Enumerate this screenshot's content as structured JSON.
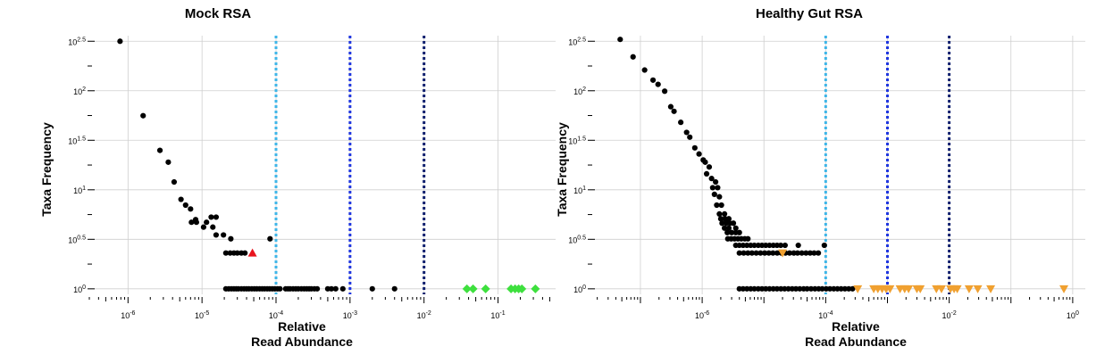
{
  "chart_data": [
    {
      "type": "scatter",
      "title": "Mock RSA",
      "xlabel": [
        "Relative",
        "Read Abundance"
      ],
      "ylabel": "Taxa Frequency",
      "x_scale": "log",
      "y_scale": "log",
      "xlim": [
        3e-07,
        0.6
      ],
      "ylim": [
        0.88,
        360
      ],
      "grid": true,
      "legend": "none",
      "x_ticks": [
        {
          "value": 1e-06,
          "base": "10",
          "exp": "-6"
        },
        {
          "value": 1e-05,
          "base": "10",
          "exp": "-5"
        },
        {
          "value": 0.0001,
          "base": "10",
          "exp": "-4"
        },
        {
          "value": 0.001,
          "base": "10",
          "exp": "-3"
        },
        {
          "value": 0.01,
          "base": "10",
          "exp": "-2"
        },
        {
          "value": 0.1,
          "base": "10",
          "exp": "-1"
        }
      ],
      "y_ticks": [
        {
          "value": 1,
          "base": "10",
          "exp": "0"
        },
        {
          "value": 3.1623,
          "base": "10",
          "exp": "0.5"
        },
        {
          "value": 10,
          "base": "10",
          "exp": "1"
        },
        {
          "value": 31.623,
          "base": "10",
          "exp": "1.5"
        },
        {
          "value": 100,
          "base": "10",
          "exp": "2"
        },
        {
          "value": 316.23,
          "base": "10",
          "exp": "2.5"
        }
      ],
      "threshold_lines": [
        {
          "x": 0.0001,
          "color": "#3fb6e8"
        },
        {
          "x": 0.001,
          "color": "#1f36e0"
        },
        {
          "x": 0.01,
          "color": "#0e1f6e"
        }
      ],
      "series": [
        {
          "color": "#000000",
          "marker": "circle",
          "points": [
            [
              7.8e-07,
              316
            ],
            [
              1.6e-06,
              56
            ],
            [
              2.7e-06,
              25
            ],
            [
              3.5e-06,
              19
            ],
            [
              4.2e-06,
              12
            ],
            [
              5.2e-06,
              8
            ],
            [
              6e-06,
              7
            ],
            [
              7e-06,
              6.4
            ],
            [
              8.2e-06,
              5
            ],
            [
              7.2e-06,
              4.7
            ],
            [
              8.4e-06,
              4.7
            ],
            [
              1.15e-05,
              4.7
            ],
            [
              1.33e-05,
              5.3
            ],
            [
              1.55e-05,
              5.3
            ],
            [
              1.05e-05,
              4.2
            ],
            [
              1.4e-05,
              4.2
            ],
            [
              1.55e-05,
              3.5
            ],
            [
              1.95e-05,
              3.5
            ],
            [
              2.45e-05,
              3.2
            ],
            [
              2.1e-05,
              2.3
            ],
            [
              2.4e-05,
              2.3
            ],
            [
              2.7e-05,
              2.3
            ],
            [
              3e-05,
              2.3
            ],
            [
              3.4e-05,
              2.3
            ],
            [
              3.8e-05,
              2.3
            ],
            [
              8.3e-05,
              3.2
            ],
            [
              2.1e-05,
              1
            ],
            [
              2.3e-05,
              1
            ],
            [
              2.5e-05,
              1
            ],
            [
              2.7e-05,
              1
            ],
            [
              2.9e-05,
              1
            ],
            [
              3.1e-05,
              1
            ],
            [
              3.4e-05,
              1
            ],
            [
              3.7e-05,
              1
            ],
            [
              4e-05,
              1
            ],
            [
              4.3e-05,
              1
            ],
            [
              4.7e-05,
              1
            ],
            [
              5.1e-05,
              1
            ],
            [
              5.5e-05,
              1
            ],
            [
              6e-05,
              1
            ],
            [
              6.5e-05,
              1
            ],
            [
              7e-05,
              1
            ],
            [
              7.6e-05,
              1
            ],
            [
              8.2e-05,
              1
            ],
            [
              8.9e-05,
              1
            ],
            [
              9.6e-05,
              1
            ],
            [
              0.000105,
              1
            ],
            [
              0.000113,
              1
            ],
            [
              0.000135,
              1
            ],
            [
              0.000145,
              1
            ],
            [
              0.000155,
              1
            ],
            [
              0.00017,
              1
            ],
            [
              0.000185,
              1
            ],
            [
              0.0002,
              1
            ],
            [
              0.00022,
              1
            ],
            [
              0.00024,
              1
            ],
            [
              0.00026,
              1
            ],
            [
              0.00028,
              1
            ],
            [
              0.0003,
              1
            ],
            [
              0.00033,
              1
            ],
            [
              0.00036,
              1
            ],
            [
              0.0005,
              1
            ],
            [
              0.00056,
              1
            ],
            [
              0.00064,
              1
            ],
            [
              0.0008,
              1
            ],
            [
              0.002,
              1
            ],
            [
              0.004,
              1
            ]
          ]
        },
        {
          "color": "#e8141e",
          "marker": "triangle-up",
          "points": [
            [
              4.8e-05,
              2.3
            ]
          ]
        },
        {
          "color": "#3ee03e",
          "marker": "diamond",
          "points": [
            [
              0.038,
              1
            ],
            [
              0.046,
              1
            ],
            [
              0.068,
              1
            ],
            [
              0.15,
              1
            ],
            [
              0.17,
              1
            ],
            [
              0.19,
              1
            ],
            [
              0.21,
              1
            ],
            [
              0.32,
              1
            ]
          ]
        }
      ]
    },
    {
      "type": "scatter",
      "title": "Healthy Gut RSA",
      "xlabel": [
        "Relative",
        "Read Abundance"
      ],
      "ylabel": "Taxa Frequency",
      "x_scale": "log",
      "y_scale": "log",
      "xlim": [
        1.5e-08,
        1.6
      ],
      "ylim": [
        0.88,
        360
      ],
      "grid": true,
      "legend": "none",
      "x_ticks": [
        {
          "value": 1e-06,
          "base": "10",
          "exp": "-6"
        },
        {
          "value": 0.0001,
          "base": "10",
          "exp": "-4"
        },
        {
          "value": 0.01,
          "base": "10",
          "exp": "-2"
        },
        {
          "value": 1,
          "base": "10",
          "exp": "0"
        }
      ],
      "y_ticks": [
        {
          "value": 1,
          "base": "10",
          "exp": "0"
        },
        {
          "value": 3.1623,
          "base": "10",
          "exp": "0.5"
        },
        {
          "value": 10,
          "base": "10",
          "exp": "1"
        },
        {
          "value": 31.623,
          "base": "10",
          "exp": "1.5"
        },
        {
          "value": 100,
          "base": "10",
          "exp": "2"
        },
        {
          "value": 316.23,
          "base": "10",
          "exp": "2.5"
        }
      ],
      "threshold_lines": [
        {
          "x": 0.0001,
          "color": "#3fb6e8"
        },
        {
          "x": 0.001,
          "color": "#1f36e0"
        },
        {
          "x": 0.01,
          "color": "#0e1f6e"
        }
      ],
      "series": [
        {
          "color": "#000000",
          "marker": "circle",
          "points": [
            [
              4.7e-08,
              330
            ],
            [
              7.6e-08,
              220
            ],
            [
              1.17e-07,
              162
            ],
            [
              1.6e-07,
              128
            ],
            [
              1.93e-07,
              116
            ],
            [
              2.47e-07,
              99
            ],
            [
              3.1e-07,
              69
            ],
            [
              3.5e-07,
              62
            ],
            [
              4.5e-07,
              48
            ],
            [
              5.6e-07,
              38
            ],
            [
              6.3e-07,
              34
            ],
            [
              7.6e-07,
              26.5
            ],
            [
              8.9e-07,
              23
            ],
            [
              1.04e-06,
              20
            ],
            [
              1.12e-06,
              19
            ],
            [
              1.3e-06,
              17
            ],
            [
              1.18e-06,
              14.5
            ],
            [
              1.42e-06,
              13
            ],
            [
              1.65e-06,
              12
            ],
            [
              1.48e-06,
              10.5
            ],
            [
              1.78e-06,
              10.5
            ],
            [
              1.58e-06,
              9
            ],
            [
              1.9e-06,
              8.5
            ],
            [
              1.72e-06,
              7
            ],
            [
              2.05e-06,
              7
            ],
            [
              1.9e-06,
              5.7
            ],
            [
              2.3e-06,
              5.7
            ],
            [
              2e-06,
              5.1
            ],
            [
              2.35e-06,
              5.1
            ],
            [
              2.7e-06,
              5.1
            ],
            [
              2.1e-06,
              4.6
            ],
            [
              2.45e-06,
              4.6
            ],
            [
              2.8e-06,
              4.6
            ],
            [
              3.2e-06,
              4.6
            ],
            [
              3.5e-06,
              4.1
            ],
            [
              2.3e-06,
              4.1
            ],
            [
              2.7e-06,
              4.1
            ],
            [
              2.55e-06,
              3.7
            ],
            [
              3e-06,
              3.7
            ],
            [
              3.5e-06,
              3.7
            ],
            [
              4e-06,
              3.7
            ],
            [
              2.6e-06,
              3.2
            ],
            [
              2.95e-06,
              3.2
            ],
            [
              3.35e-06,
              3.2
            ],
            [
              3.8e-06,
              3.2
            ],
            [
              4.3e-06,
              3.2
            ],
            [
              4.9e-06,
              3.2
            ],
            [
              5.5e-06,
              3.2
            ],
            [
              3.5e-06,
              2.75
            ],
            [
              4e-06,
              2.75
            ],
            [
              4.6e-06,
              2.75
            ],
            [
              5.3e-06,
              2.75
            ],
            [
              6.1e-06,
              2.75
            ],
            [
              7e-06,
              2.75
            ],
            [
              8.1e-06,
              2.75
            ],
            [
              9.3e-06,
              2.75
            ],
            [
              1.07e-05,
              2.75
            ],
            [
              1.23e-05,
              2.75
            ],
            [
              1.42e-05,
              2.75
            ],
            [
              1.63e-05,
              2.75
            ],
            [
              1.87e-05,
              2.75
            ],
            [
              2.2e-05,
              2.75
            ],
            [
              3.6e-05,
              2.75
            ],
            [
              9.5e-05,
              2.75
            ],
            [
              4e-06,
              2.3
            ],
            [
              4.7e-06,
              2.3
            ],
            [
              5.5e-06,
              2.3
            ],
            [
              6.4e-06,
              2.3
            ],
            [
              7.5e-06,
              2.3
            ],
            [
              8.8e-06,
              2.3
            ],
            [
              1.03e-05,
              2.3
            ],
            [
              1.2e-05,
              2.3
            ],
            [
              1.4e-05,
              2.3
            ],
            [
              1.64e-05,
              2.3
            ],
            [
              1.91e-05,
              2.3
            ],
            [
              2.23e-05,
              2.3
            ],
            [
              2.6e-05,
              2.3
            ],
            [
              3.04e-05,
              2.3
            ],
            [
              3.5e-05,
              2.3
            ],
            [
              4.1e-05,
              2.3
            ],
            [
              4.8e-05,
              2.3
            ],
            [
              5.6e-05,
              2.3
            ],
            [
              6.5e-05,
              2.3
            ],
            [
              7.6e-05,
              2.3
            ],
            [
              4e-06,
              1
            ],
            [
              4.6e-06,
              1
            ],
            [
              5.3e-06,
              1
            ],
            [
              6.1e-06,
              1
            ],
            [
              7e-06,
              1
            ],
            [
              8.1e-06,
              1
            ],
            [
              9.3e-06,
              1
            ],
            [
              1.07e-05,
              1
            ],
            [
              1.23e-05,
              1
            ],
            [
              1.42e-05,
              1
            ],
            [
              1.63e-05,
              1
            ],
            [
              1.88e-05,
              1
            ],
            [
              2.16e-05,
              1
            ],
            [
              2.49e-05,
              1
            ],
            [
              2.87e-05,
              1
            ],
            [
              3.3e-05,
              1
            ],
            [
              3.8e-05,
              1
            ],
            [
              4.4e-05,
              1
            ],
            [
              5e-05,
              1
            ],
            [
              5.8e-05,
              1
            ],
            [
              6.7e-05,
              1
            ],
            [
              7.7e-05,
              1
            ],
            [
              8.8e-05,
              1
            ],
            [
              0.000102,
              1
            ],
            [
              0.000117,
              1
            ],
            [
              0.000135,
              1
            ],
            [
              0.000155,
              1
            ],
            [
              0.000178,
              1
            ],
            [
              0.000205,
              1
            ],
            [
              0.000236,
              1
            ],
            [
              0.000272,
              1
            ]
          ]
        },
        {
          "color": "#f0a030",
          "marker": "triangle-down",
          "points": [
            [
              2e-05,
              2.3
            ],
            [
              0.00033,
              1
            ],
            [
              0.0006,
              1
            ],
            [
              0.0007,
              1
            ],
            [
              0.00082,
              1
            ],
            [
              0.00095,
              1
            ],
            [
              0.0011,
              1
            ],
            [
              0.0016,
              1
            ],
            [
              0.0019,
              1
            ],
            [
              0.0022,
              1
            ],
            [
              0.003,
              1
            ],
            [
              0.0034,
              1
            ],
            [
              0.0062,
              1
            ],
            [
              0.0075,
              1
            ],
            [
              0.0105,
              1
            ],
            [
              0.012,
              1
            ],
            [
              0.0135,
              1
            ],
            [
              0.021,
              1
            ],
            [
              0.029,
              1
            ],
            [
              0.047,
              1
            ],
            [
              0.72,
              1
            ]
          ]
        }
      ]
    }
  ]
}
